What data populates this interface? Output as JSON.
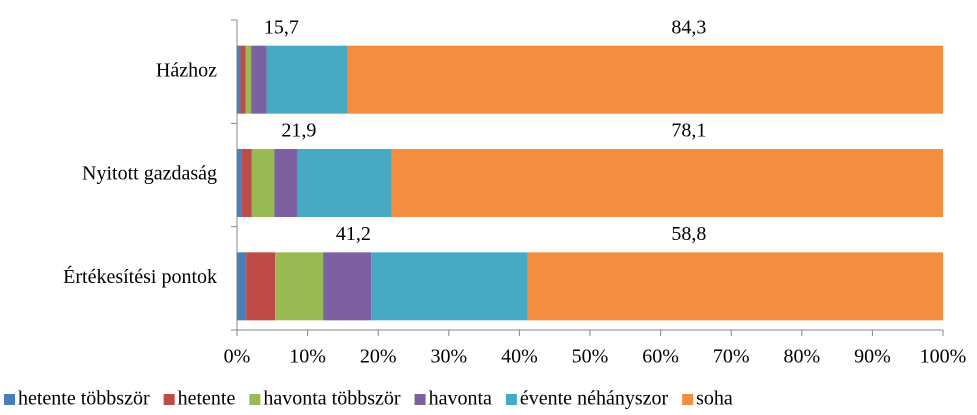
{
  "chart_data": {
    "type": "stacked-bar-horizontal",
    "categories": [
      "Házhoz",
      "Nyitott gazdaság",
      "Értékesítési pontok"
    ],
    "series": [
      {
        "name": "hetente többször",
        "color": "#4a7ebb",
        "values": [
          0.5,
          0.6,
          1.3
        ]
      },
      {
        "name": "hetente",
        "color": "#be4b48",
        "values": [
          0.7,
          1.5,
          4.1
        ]
      },
      {
        "name": "havonta többször",
        "color": "#98b954",
        "values": [
          0.8,
          3.2,
          6.8
        ]
      },
      {
        "name": "havonta",
        "color": "#7d60a0",
        "values": [
          2.2,
          3.3,
          6.8
        ]
      },
      {
        "name": "évente néhányszor",
        "color": "#46aac5",
        "values": [
          11.5,
          13.3,
          22.2
        ]
      },
      {
        "name": "soha",
        "color": "#f58d41",
        "values": [
          84.3,
          78.1,
          58.8
        ],
        "value_labels": [
          "84,3",
          "78,1",
          "58,8"
        ]
      }
    ],
    "annotations": [
      {
        "text": "15,7",
        "value": 15.7
      },
      {
        "text": "21,9",
        "value": 21.9
      },
      {
        "text": "41,2",
        "value": 41.2
      }
    ],
    "xlim": [
      0,
      100
    ],
    "xticks": [
      {
        "value": 0,
        "label": "0%"
      },
      {
        "value": 10,
        "label": "10%"
      },
      {
        "value": 20,
        "label": "20%"
      },
      {
        "value": 30,
        "label": "30%"
      },
      {
        "value": 40,
        "label": "40%"
      },
      {
        "value": 50,
        "label": "50%"
      },
      {
        "value": 60,
        "label": "60%"
      },
      {
        "value": 70,
        "label": "70%"
      },
      {
        "value": 80,
        "label": "80%"
      },
      {
        "value": 90,
        "label": "90%"
      },
      {
        "value": 100,
        "label": "100%"
      }
    ],
    "legend": "bottom"
  }
}
